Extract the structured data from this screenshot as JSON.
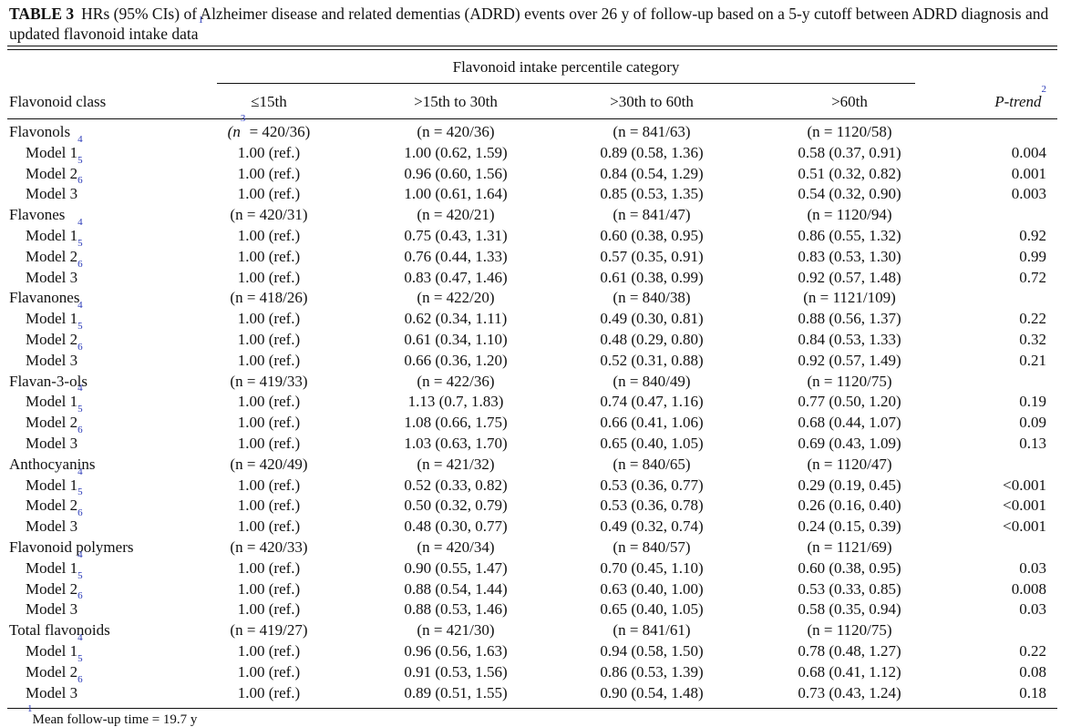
{
  "caption": {
    "label": "TABLE 3",
    "text": "HRs (95% CIs) of Alzheimer disease and related dementias (ADRD) events over 26 y of follow-up based on a 5-y cutoff between ADRD diagnosis and updated flavonoid intake data",
    "sup": "1"
  },
  "group_header": "Flavonoid intake percentile category",
  "headers": {
    "class": "Flavonoid class",
    "p1": "≤15th",
    "p2": ">15th to 30th",
    "p3": ">30th to 60th",
    "p4": ">60th",
    "ptrend": "P-trend",
    "ptrend_sup": "2"
  },
  "groups": [
    {
      "name": "Flavonols",
      "n": [
        "(n",
        "= 420/36)",
        "(n = 420/36)",
        "(n = 841/63)",
        "(n = 1120/58)"
      ],
      "first_n_sup": "3",
      "models": [
        {
          "label": "Model 1",
          "sup": "4",
          "vals": [
            "1.00 (ref.)",
            "1.00 (0.62, 1.59)",
            "0.89 (0.58, 1.36)",
            "0.58 (0.37, 0.91)"
          ],
          "p": "0.004"
        },
        {
          "label": "Model 2",
          "sup": "5",
          "vals": [
            "1.00 (ref.)",
            "0.96 (0.60, 1.56)",
            "0.84 (0.54, 1.29)",
            "0.51 (0.32, 0.82)"
          ],
          "p": "0.001"
        },
        {
          "label": "Model 3",
          "sup": "6",
          "vals": [
            "1.00 (ref.)",
            "1.00 (0.61, 1.64)",
            "0.85 (0.53, 1.35)",
            "0.54 (0.32, 0.90)"
          ],
          "p": "0.003"
        }
      ]
    },
    {
      "name": "Flavones",
      "n": [
        "(n = 420/31)",
        "",
        "(n = 420/21)",
        "(n = 841/47)",
        "(n = 1120/94)"
      ],
      "models": [
        {
          "label": "Model 1",
          "sup": "4",
          "vals": [
            "1.00 (ref.)",
            "0.75 (0.43, 1.31)",
            "0.60 (0.38, 0.95)",
            "0.86 (0.55, 1.32)"
          ],
          "p": "0.92"
        },
        {
          "label": "Model 2",
          "sup": "5",
          "vals": [
            "1.00 (ref.)",
            "0.76 (0.44, 1.33)",
            "0.57 (0.35, 0.91)",
            "0.83 (0.53, 1.30)"
          ],
          "p": "0.99"
        },
        {
          "label": "Model 3",
          "sup": "6",
          "vals": [
            "1.00 (ref.)",
            "0.83 (0.47, 1.46)",
            "0.61 (0.38, 0.99)",
            "0.92 (0.57, 1.48)"
          ],
          "p": "0.72"
        }
      ]
    },
    {
      "name": "Flavanones",
      "n": [
        "(n = 418/26)",
        "",
        "(n = 422/20)",
        "(n = 840/38)",
        "(n = 1121/109)"
      ],
      "models": [
        {
          "label": "Model 1",
          "sup": "4",
          "vals": [
            "1.00 (ref.)",
            "0.62 (0.34, 1.11)",
            "0.49 (0.30, 0.81)",
            "0.88 (0.56, 1.37)"
          ],
          "p": "0.22"
        },
        {
          "label": "Model 2",
          "sup": "5",
          "vals": [
            "1.00 (ref.)",
            "0.61 (0.34, 1.10)",
            "0.48 (0.29, 0.80)",
            "0.84 (0.53, 1.33)"
          ],
          "p": "0.32"
        },
        {
          "label": "Model 3",
          "sup": "6",
          "vals": [
            "1.00 (ref.)",
            "0.66 (0.36, 1.20)",
            "0.52 (0.31, 0.88)",
            "0.92 (0.57, 1.49)"
          ],
          "p": "0.21"
        }
      ]
    },
    {
      "name": "Flavan-3-ols",
      "n": [
        "(n = 419/33)",
        "",
        "(n = 422/36)",
        "(n = 840/49)",
        "(n = 1120/75)"
      ],
      "models": [
        {
          "label": "Model 1",
          "sup": "4",
          "vals": [
            "1.00 (ref.)",
            "1.13 (0.7, 1.83)",
            "0.74 (0.47, 1.16)",
            "0.77 (0.50, 1.20)"
          ],
          "p": "0.19"
        },
        {
          "label": "Model 2",
          "sup": "5",
          "vals": [
            "1.00 (ref.)",
            "1.08 (0.66, 1.75)",
            "0.66 (0.41, 1.06)",
            "0.68 (0.44, 1.07)"
          ],
          "p": "0.09"
        },
        {
          "label": "Model 3",
          "sup": "6",
          "vals": [
            "1.00 (ref.)",
            "1.03 (0.63, 1.70)",
            "0.65 (0.40, 1.05)",
            "0.69 (0.43, 1.09)"
          ],
          "p": "0.13"
        }
      ]
    },
    {
      "name": "Anthocyanins",
      "n": [
        "(n = 420/49)",
        "",
        "(n = 421/32)",
        "(n = 840/65)",
        "(n = 1120/47)"
      ],
      "models": [
        {
          "label": "Model 1",
          "sup": "4",
          "vals": [
            "1.00 (ref.)",
            "0.52 (0.33, 0.82)",
            "0.53 (0.36, 0.77)",
            "0.29 (0.19, 0.45)"
          ],
          "p": "<0.001"
        },
        {
          "label": "Model 2",
          "sup": "5",
          "vals": [
            "1.00 (ref.)",
            "0.50 (0.32, 0.79)",
            "0.53 (0.36, 0.78)",
            "0.26 (0.16, 0.40)"
          ],
          "p": "<0.001"
        },
        {
          "label": "Model 3",
          "sup": "6",
          "vals": [
            "1.00 (ref.)",
            "0.48 (0.30, 0.77)",
            "0.49 (0.32, 0.74)",
            "0.24 (0.15, 0.39)"
          ],
          "p": "<0.001"
        }
      ]
    },
    {
      "name": "Flavonoid polymers",
      "n": [
        "(n = 420/33)",
        "",
        "(n = 420/34)",
        "(n = 840/57)",
        "(n = 1121/69)"
      ],
      "models": [
        {
          "label": "Model 1",
          "sup": "4",
          "vals": [
            "1.00 (ref.)",
            "0.90 (0.55, 1.47)",
            "0.70 (0.45, 1.10)",
            "0.60 (0.38, 0.95)"
          ],
          "p": "0.03"
        },
        {
          "label": "Model 2",
          "sup": "5",
          "vals": [
            "1.00 (ref.)",
            "0.88 (0.54, 1.44)",
            "0.63 (0.40, 1.00)",
            "0.53 (0.33, 0.85)"
          ],
          "p": "0.008"
        },
        {
          "label": "Model 3",
          "sup": "6",
          "vals": [
            "1.00 (ref.)",
            "0.88 (0.53, 1.46)",
            "0.65 (0.40, 1.05)",
            "0.58 (0.35, 0.94)"
          ],
          "p": "0.03"
        }
      ]
    },
    {
      "name": "Total flavonoids",
      "n": [
        "(n = 419/27)",
        "",
        "(n = 421/30)",
        "(n = 841/61)",
        "(n = 1120/75)"
      ],
      "models": [
        {
          "label": "Model 1",
          "sup": "4",
          "vals": [
            "1.00 (ref.)",
            "0.96 (0.56, 1.63)",
            "0.94 (0.58, 1.50)",
            "0.78 (0.48, 1.27)"
          ],
          "p": "0.22"
        },
        {
          "label": "Model 2",
          "sup": "5",
          "vals": [
            "1.00 (ref.)",
            "0.91 (0.53, 1.56)",
            "0.86 (0.53, 1.39)",
            "0.68 (0.41, 1.12)"
          ],
          "p": "0.08"
        },
        {
          "label": "Model 3",
          "sup": "6",
          "vals": [
            "1.00 (ref.)",
            "0.89 (0.51, 1.55)",
            "0.90 (0.54, 1.48)",
            "0.73 (0.43, 1.24)"
          ],
          "p": "0.18"
        }
      ]
    }
  ],
  "footnote": {
    "sup": "1",
    "text": "Mean follow-up time = 19.7 y"
  }
}
